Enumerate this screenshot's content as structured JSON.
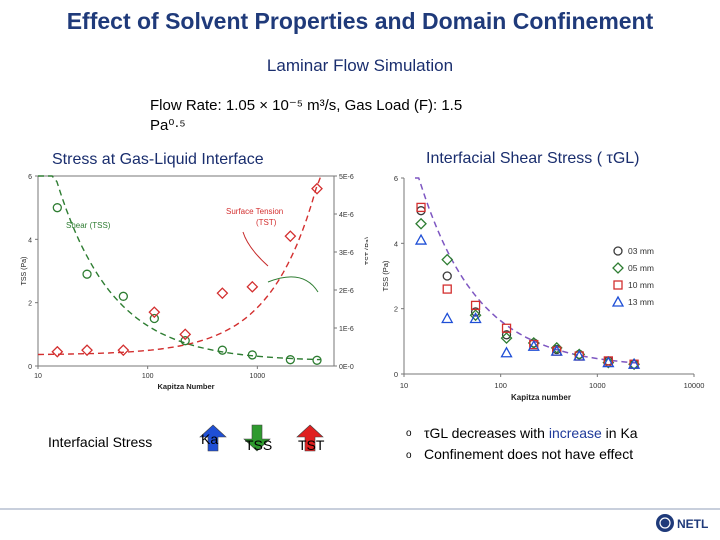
{
  "slide": {
    "title": "Effect of Solvent Properties and Domain Confinement",
    "subtitle": "Laminar Flow Simulation",
    "condition_line1": "Flow Rate: 1.05 × 10⁻⁵ m³/s, Gas Load (F):  1.5",
    "condition_line2": "Pa⁰·⁵",
    "left_heading": "Stress at  Gas-Liquid Interface",
    "right_heading": "Interfacial Shear Stress ( τGL)",
    "legend_caption": "Interfacial Stress",
    "arrows": [
      {
        "label": "Ka",
        "color": "#1f4fd6",
        "direction": "up"
      },
      {
        "label": "TSS",
        "color": "#2e9a2e",
        "direction": "down"
      },
      {
        "label": "TST",
        "color": "#e02020",
        "direction": "up"
      }
    ],
    "bullets": [
      {
        "pre": "τGL  decreases with ",
        "highlight": "increase",
        "post": " in  Ka"
      },
      {
        "pre": "Confinement does not  have effect",
        "highlight": "",
        "post": ""
      }
    ],
    "logo_text": "NETL"
  },
  "chart_data": [
    {
      "type": "scatter",
      "xlabel": "Kapitza Number",
      "ylabel_left": "TSS (Pa)",
      "ylabel_right": "TST (Pa)",
      "x_scale": "log",
      "xlim": [
        10,
        5000
      ],
      "ylim_left": [
        0,
        6
      ],
      "ylim_right": [
        0,
        5e-06
      ],
      "x_ticks": [
        "10",
        "100",
        "1000"
      ],
      "y_ticks_left": [
        "0",
        "2",
        "4",
        "6"
      ],
      "y_ticks_right": [
        "0E-0",
        "1E-6",
        "2E-6",
        "3E-6",
        "4E-6",
        "5E-6"
      ],
      "annotations": [
        "Shear (TSS)",
        "Surface Tension (TST)"
      ],
      "series": [
        {
          "name": "Shear (TSS)",
          "marker": "circle",
          "color": "#2e7d32",
          "axis": "left",
          "x": [
            15,
            28,
            60,
            115,
            220,
            480,
            900,
            2000,
            3500
          ],
          "y": [
            5.0,
            2.9,
            2.2,
            1.5,
            0.8,
            0.5,
            0.35,
            0.2,
            0.18
          ]
        },
        {
          "name": "Surface Tension (TST)",
          "marker": "diamond",
          "color": "#d32f2f",
          "axis": "left",
          "x": [
            15,
            28,
            60,
            115,
            220,
            480,
            900,
            2000,
            3500
          ],
          "y": [
            0.45,
            0.5,
            0.5,
            1.7,
            1.0,
            2.3,
            2.5,
            4.1,
            5.6
          ]
        }
      ]
    },
    {
      "type": "scatter",
      "xlabel": "Kapitza number",
      "ylabel": "TSS (Pa)",
      "x_scale": "log",
      "xlim": [
        10,
        10000
      ],
      "ylim": [
        0,
        6
      ],
      "x_ticks": [
        "10",
        "100",
        "1000",
        "10000"
      ],
      "y_ticks": [
        "0",
        "2",
        "4",
        "6"
      ],
      "legend_position": "right",
      "series": [
        {
          "name": "03 mm",
          "marker": "circle",
          "color": "#3a3a3a",
          "x": [
            15,
            28,
            55,
            115,
            220,
            380,
            650,
            1300,
            2400
          ],
          "y": [
            5.0,
            3.0,
            1.9,
            1.2,
            0.95,
            0.75,
            0.6,
            0.4,
            0.3
          ]
        },
        {
          "name": "05 mm",
          "marker": "diamond",
          "color": "#2e7d32",
          "x": [
            15,
            28,
            55,
            115,
            220,
            380,
            650,
            1300,
            2400
          ],
          "y": [
            4.6,
            3.5,
            1.8,
            1.1,
            0.95,
            0.8,
            0.6,
            0.35,
            0.3
          ]
        },
        {
          "name": "10 mm",
          "marker": "square",
          "color": "#d32f2f",
          "x": [
            15,
            28,
            55,
            115,
            220,
            380,
            650,
            1300,
            2400
          ],
          "y": [
            5.1,
            2.6,
            2.1,
            1.4,
            0.9,
            0.7,
            0.55,
            0.4,
            0.3
          ]
        },
        {
          "name": "13 mm",
          "marker": "triangle",
          "color": "#1f4fd6",
          "x": [
            15,
            28,
            55,
            115,
            220,
            380,
            650,
            1300,
            2400
          ],
          "y": [
            4.1,
            1.7,
            1.7,
            0.65,
            0.85,
            0.7,
            0.55,
            0.35,
            0.3
          ]
        }
      ]
    }
  ]
}
